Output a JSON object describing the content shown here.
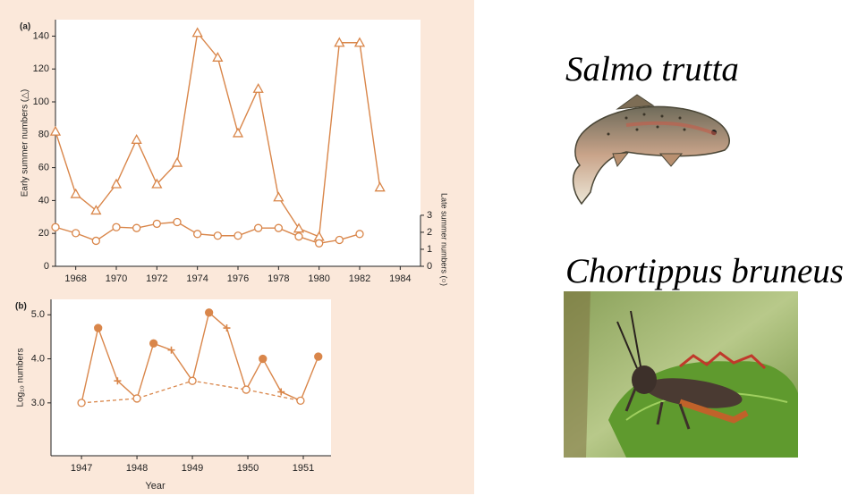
{
  "chart_data": [
    {
      "type": "line",
      "label": "(a)",
      "x": [
        1967,
        1968,
        1969,
        1970,
        1971,
        1972,
        1973,
        1974,
        1975,
        1976,
        1977,
        1978,
        1979,
        1980,
        1981,
        1982,
        1983
      ],
      "xlim": [
        1967,
        1985
      ],
      "xticks": [
        1968,
        1970,
        1972,
        1974,
        1976,
        1978,
        1980,
        1982,
        1984
      ],
      "ylim": [
        0,
        150
      ],
      "yticks": [
        0,
        20,
        40,
        60,
        80,
        100,
        120,
        140
      ],
      "y2lim": [
        0,
        14.5
      ],
      "y2ticks": [
        0,
        1,
        2,
        3
      ],
      "ylabel": "Early summer numbers (△)",
      "y2label": "Late summer numbers (○)",
      "series": [
        {
          "color": "#d9864a",
          "marker": "triangle-open",
          "values": [
            82,
            44,
            34,
            50,
            77,
            50,
            63,
            142,
            127,
            81,
            108,
            42,
            23,
            18,
            136,
            136,
            48
          ]
        },
        {
          "color": "#d9864a",
          "marker": "circle-open",
          "axis": "y2",
          "values": [
            2.3,
            1.95,
            1.5,
            2.3,
            2.25,
            2.5,
            2.6,
            1.9,
            1.8,
            1.8,
            2.25,
            2.25,
            1.75,
            1.35,
            1.55,
            1.9,
            null
          ]
        }
      ]
    },
    {
      "type": "line",
      "label": "(b)",
      "x": [
        1947.0,
        1947.3,
        1947.65,
        1948.0,
        1948.3,
        1948.62,
        1949.0,
        1949.3,
        1949.62,
        1949.97,
        1950.27,
        1950.6,
        1950.95,
        1951.27
      ],
      "xlim": [
        1946.45,
        1951.5
      ],
      "xticks": [
        1947,
        1948,
        1949,
        1950,
        1951
      ],
      "ylim": [
        1.8,
        5.35
      ],
      "yticks": [
        {
          "value": 3,
          "label": "3.0"
        },
        {
          "value": 4,
          "label": "4.0"
        },
        {
          "value": 5,
          "label": "5.0"
        }
      ],
      "xlabel": "Year",
      "ylabel": "Log₁₀ numbers",
      "series": [
        {
          "color": "#d9864a",
          "dashed_link_marker": "circle-open",
          "markers": [
            "circle-open",
            "circle-filled",
            "plus",
            "circle-open",
            "circle-filled",
            "plus",
            "circle-open",
            "circle-filled",
            "plus",
            "circle-open",
            "circle-filled",
            "plus",
            "circle-open",
            "circle-filled"
          ],
          "values": [
            3.0,
            4.7,
            3.5,
            3.1,
            4.35,
            4.2,
            3.5,
            5.05,
            4.7,
            3.3,
            4.0,
            3.25,
            3.05,
            4.05
          ]
        }
      ]
    }
  ],
  "images": [
    {
      "caption": "Salmo trutta"
    },
    {
      "caption": "Chortippus bruneus"
    }
  ]
}
